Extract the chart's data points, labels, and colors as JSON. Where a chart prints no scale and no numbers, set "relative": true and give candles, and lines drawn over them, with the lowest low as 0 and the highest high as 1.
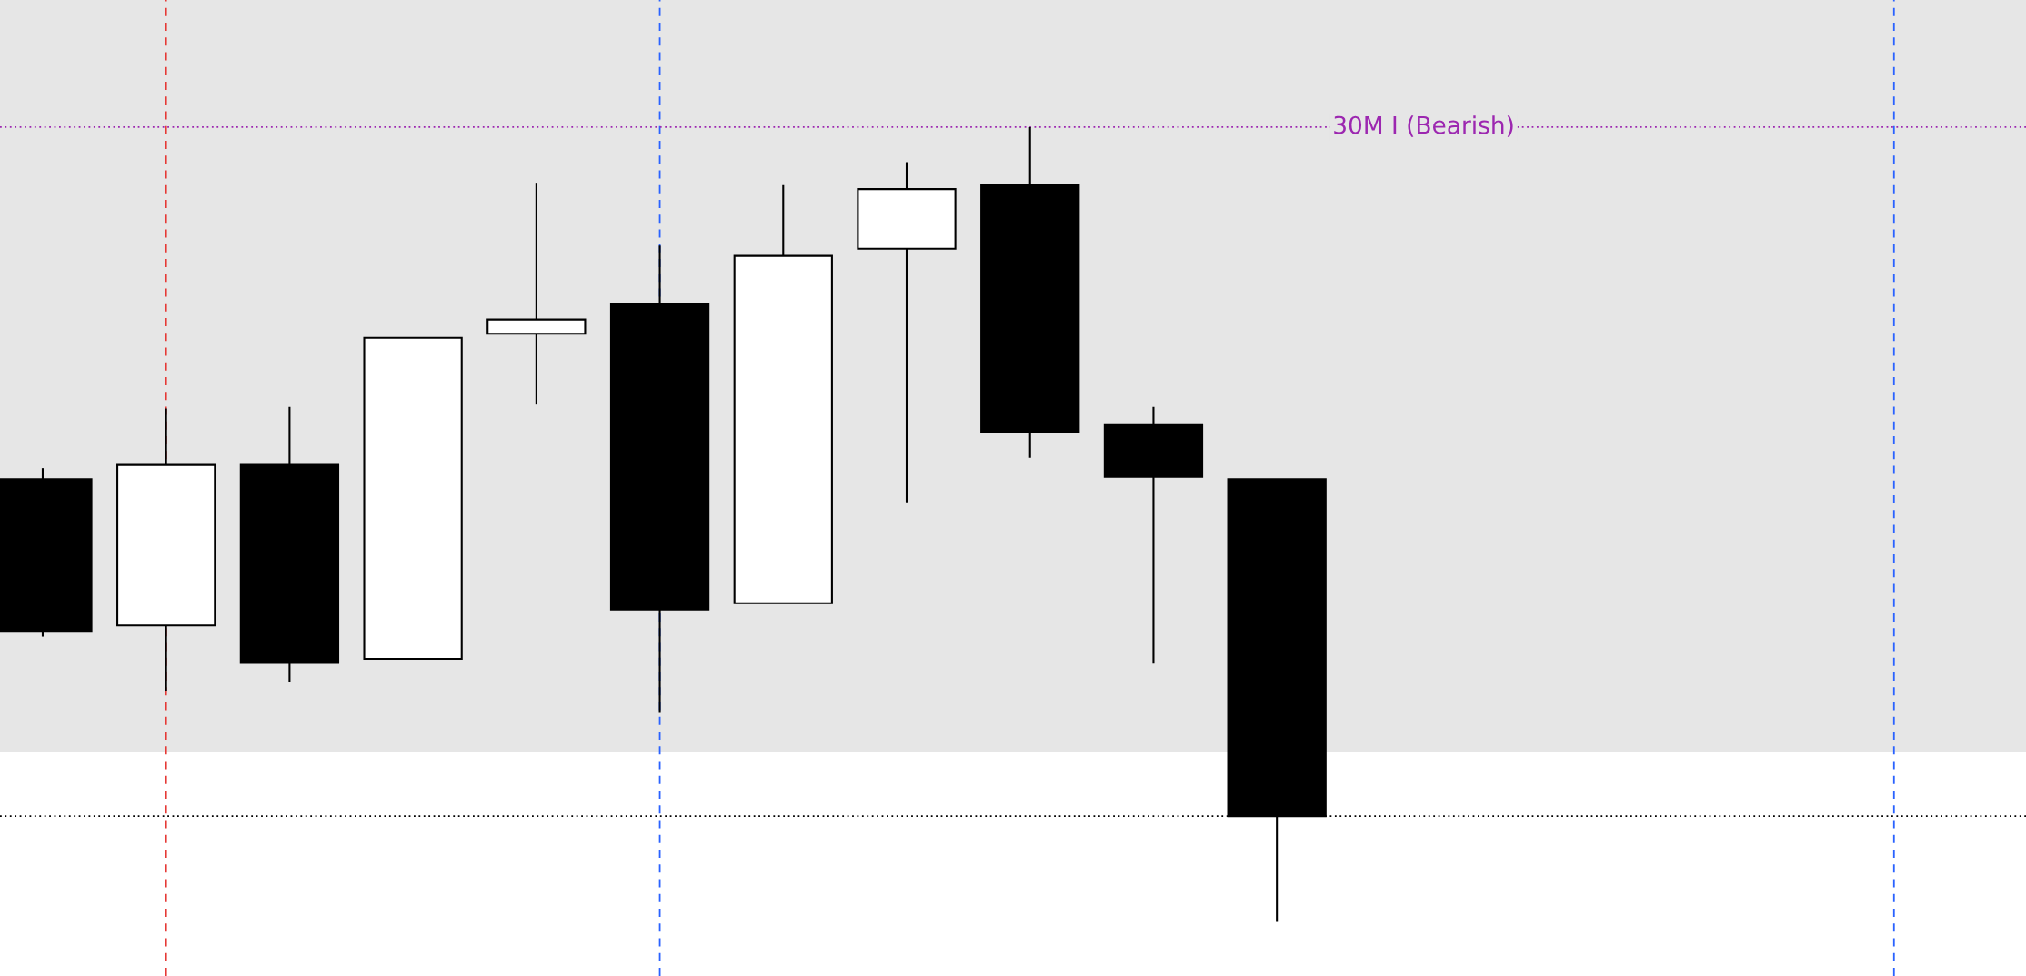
{
  "chart_data": {
    "type": "candlestick",
    "relative": true,
    "categories": [
      null,
      null,
      null,
      null,
      null,
      null,
      null,
      null,
      null,
      null,
      null,
      null,
      null,
      null,
      null,
      null
    ],
    "ohlc": [
      [
        0.557,
        0.571,
        0.359,
        0.365
      ],
      [
        0.373,
        0.646,
        0.291,
        0.575
      ],
      [
        0.575,
        0.648,
        0.302,
        0.326
      ],
      [
        0.331,
        0.735,
        0.331,
        0.735
      ],
      [
        0.74,
        0.93,
        0.651,
        0.758
      ],
      [
        0.778,
        0.851,
        0.263,
        0.393
      ],
      [
        0.401,
        0.927,
        0.401,
        0.838
      ],
      [
        0.847,
        0.956,
        0.528,
        0.922
      ],
      [
        0.927,
        1.0,
        0.584,
        0.617
      ],
      [
        0.625,
        0.648,
        0.325,
        0.56
      ],
      [
        0.557,
        0.557,
        0.0,
        0.133
      ],
      null,
      null,
      null,
      null,
      null
    ],
    "ref_lines": [
      {
        "axis": "y",
        "value": 1.0,
        "label": "30M I (Bearish)",
        "color": "#9c27b0",
        "line_style": "dotted"
      },
      {
        "axis": "y",
        "value": 0.133,
        "color": "#000000",
        "line_style": "dotted"
      }
    ],
    "bands": [
      {
        "axis": "y",
        "from": 0.214,
        "to": 1.16,
        "color": "#e6e6e6"
      }
    ],
    "grid": false,
    "legend": false
  }
}
